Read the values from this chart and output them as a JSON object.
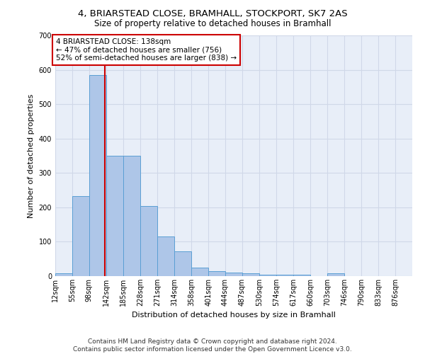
{
  "title_line1": "4, BRIARSTEAD CLOSE, BRAMHALL, STOCKPORT, SK7 2AS",
  "title_line2": "Size of property relative to detached houses in Bramhall",
  "xlabel": "Distribution of detached houses by size in Bramhall",
  "ylabel": "Number of detached properties",
  "bin_labels": [
    "12sqm",
    "55sqm",
    "98sqm",
    "142sqm",
    "185sqm",
    "228sqm",
    "271sqm",
    "314sqm",
    "358sqm",
    "401sqm",
    "444sqm",
    "487sqm",
    "530sqm",
    "574sqm",
    "617sqm",
    "660sqm",
    "703sqm",
    "746sqm",
    "790sqm",
    "833sqm",
    "876sqm"
  ],
  "bar_heights": [
    8,
    232,
    585,
    350,
    350,
    204,
    115,
    73,
    25,
    15,
    10,
    8,
    5,
    5,
    5,
    0,
    8,
    0,
    0,
    0,
    0
  ],
  "bar_color": "#aec6e8",
  "bar_edge_color": "#5a9fd4",
  "bin_edges": [
    12,
    55,
    98,
    142,
    185,
    228,
    271,
    314,
    358,
    401,
    444,
    487,
    530,
    574,
    617,
    660,
    703,
    746,
    790,
    833,
    876,
    919
  ],
  "property_size": 138,
  "vline_color": "#cc0000",
  "annotation_line1": "4 BRIARSTEAD CLOSE: 138sqm",
  "annotation_line2": "← 47% of detached houses are smaller (756)",
  "annotation_line3": "52% of semi-detached houses are larger (838) →",
  "annotation_box_color": "#cc0000",
  "ylim": [
    0,
    700
  ],
  "yticks": [
    0,
    100,
    200,
    300,
    400,
    500,
    600,
    700
  ],
  "grid_color": "#d0d8e8",
  "background_color": "#e8eef8",
  "footer_line1": "Contains HM Land Registry data © Crown copyright and database right 2024.",
  "footer_line2": "Contains public sector information licensed under the Open Government Licence v3.0.",
  "title_fontsize": 9.5,
  "subtitle_fontsize": 8.5,
  "axis_label_fontsize": 8,
  "tick_fontsize": 7,
  "annotation_fontsize": 7.5,
  "footer_fontsize": 6.5
}
